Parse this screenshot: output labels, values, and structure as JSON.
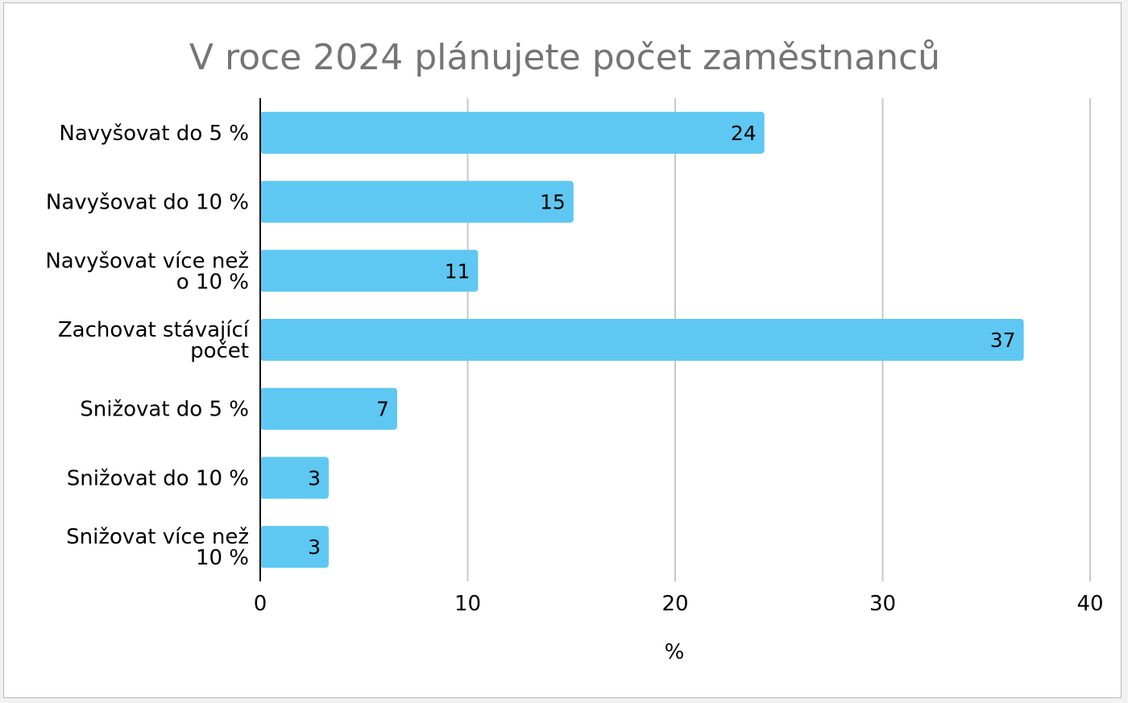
{
  "chart_data": {
    "type": "bar",
    "orientation": "horizontal",
    "title": "V roce 2024 plánujete počet zaměstnanců",
    "xlabel": "%",
    "ylabel": "",
    "categories": [
      "Navyšovat do 5 %",
      "Navyšovat do 10 %",
      "Navyšovat více než o 10 %",
      "Zachovat stávající počet",
      "Snižovat do 5 %",
      "Snižovat do 10 %",
      "Snižovat více než 10 %"
    ],
    "category_lines": [
      [
        "Navyšovat do 5 %"
      ],
      [
        "Navyšovat do 10 %"
      ],
      [
        "Navyšovat více než",
        "o 10 %"
      ],
      [
        "Zachovat stávající",
        "počet"
      ],
      [
        "Snižovat do 5 %"
      ],
      [
        "Snižovat do 10 %"
      ],
      [
        "Snižovat více než",
        "10 %"
      ]
    ],
    "values": [
      24.3,
      15.1,
      10.5,
      36.8,
      6.6,
      3.3,
      3.3
    ],
    "value_labels": [
      "24",
      "15",
      "11",
      "37",
      "7",
      "3",
      "3"
    ],
    "xlim": [
      0,
      40
    ],
    "xticks": [
      "0",
      "10",
      "20",
      "30",
      "40"
    ],
    "grid": true,
    "legend": "none",
    "colors": {
      "bar": "#5ec8f2",
      "grid": "#c8c8c8",
      "axis": "#000000",
      "title": "#757575"
    }
  }
}
